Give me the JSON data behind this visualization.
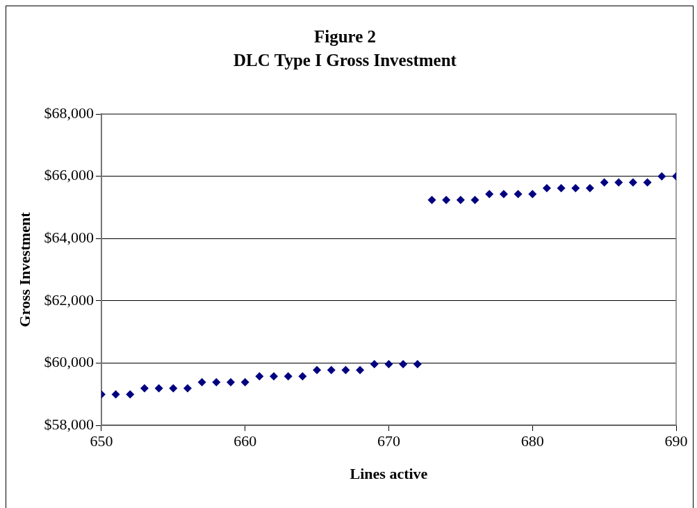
{
  "chart_data": {
    "type": "scatter",
    "title": "Figure 2",
    "subtitle": "DLC Type I Gross Investment",
    "xlabel": "Lines active",
    "ylabel": "Gross Investment",
    "x": [
      650,
      651,
      652,
      653,
      654,
      655,
      656,
      657,
      658,
      659,
      660,
      661,
      662,
      663,
      664,
      665,
      666,
      667,
      668,
      669,
      670,
      671,
      672,
      673,
      674,
      675,
      676,
      677,
      678,
      679,
      680,
      681,
      682,
      683,
      684,
      685,
      686,
      687,
      688,
      689,
      690
    ],
    "series": [
      {
        "color": "#000080",
        "values": [
          59000,
          59000,
          59000,
          59190,
          59190,
          59190,
          59190,
          59390,
          59390,
          59390,
          59390,
          59580,
          59580,
          59580,
          59580,
          59780,
          59780,
          59780,
          59780,
          59970,
          59970,
          59970,
          59970,
          65240,
          65240,
          65240,
          65240,
          65430,
          65430,
          65430,
          65430,
          65620,
          65620,
          65620,
          65620,
          65800,
          65800,
          65800,
          65800,
          66000,
          66000
        ]
      }
    ],
    "xlim": [
      650,
      690
    ],
    "xticks": [
      650,
      660,
      670,
      680,
      690
    ],
    "ylim": [
      58000,
      68000
    ],
    "yticks": [
      {
        "value": 58000,
        "label": "$58,000"
      },
      {
        "value": 60000,
        "label": "$60,000"
      },
      {
        "value": 62000,
        "label": "$62,000"
      },
      {
        "value": 64000,
        "label": "$64,000"
      },
      {
        "value": 66000,
        "label": "$66,000"
      },
      {
        "value": 68000,
        "label": "$68,000"
      }
    ],
    "grid": "y",
    "legend": false,
    "marker": "diamond"
  }
}
